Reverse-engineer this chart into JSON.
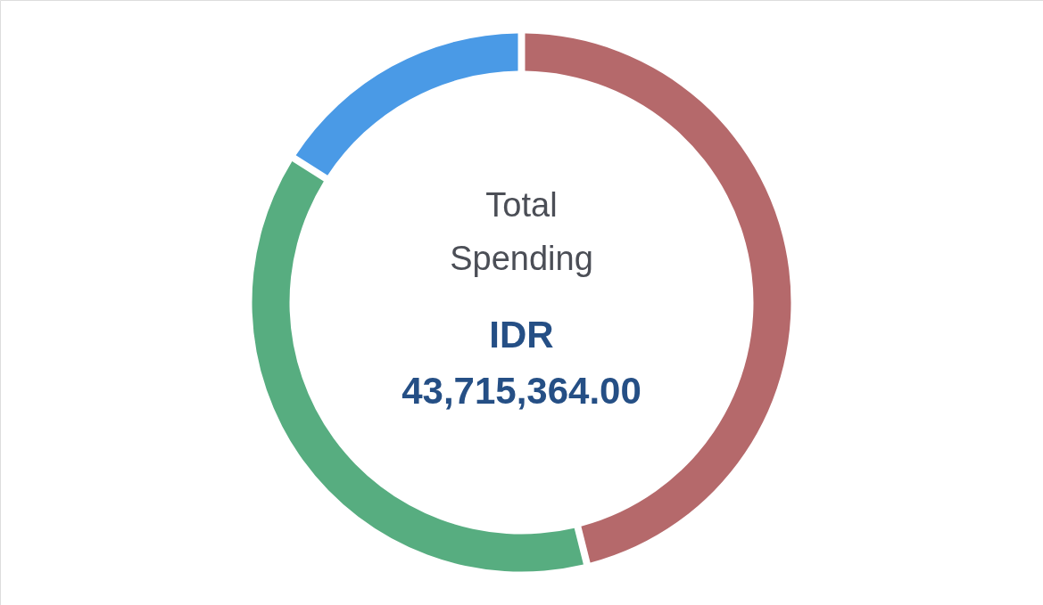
{
  "chart_data": {
    "type": "donut",
    "title": "Total Spending",
    "subtitle": "IDR 43,715,364.00",
    "categories": [
      null,
      null,
      null
    ],
    "values": [
      46.1,
      37.9,
      16.0
    ],
    "colors": [
      "#b5696b",
      "#57ad80",
      "#4a9ae6"
    ]
  }
}
